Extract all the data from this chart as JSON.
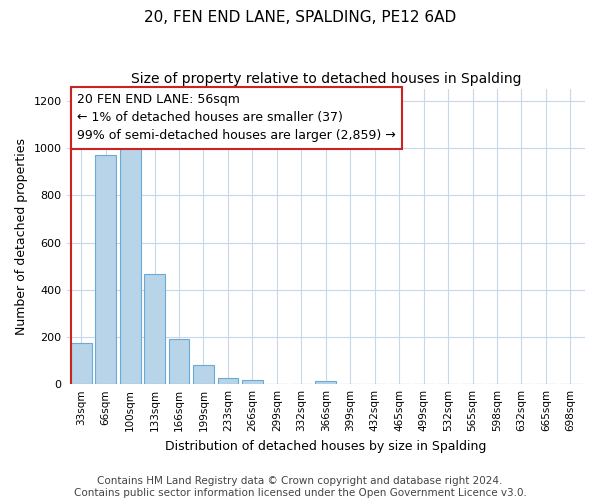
{
  "title": "20, FEN END LANE, SPALDING, PE12 6AD",
  "subtitle": "Size of property relative to detached houses in Spalding",
  "xlabel": "Distribution of detached houses by size in Spalding",
  "ylabel": "Number of detached properties",
  "bar_labels": [
    "33sqm",
    "66sqm",
    "100sqm",
    "133sqm",
    "166sqm",
    "199sqm",
    "233sqm",
    "266sqm",
    "299sqm",
    "332sqm",
    "366sqm",
    "399sqm",
    "432sqm",
    "465sqm",
    "499sqm",
    "532sqm",
    "565sqm",
    "598sqm",
    "632sqm",
    "665sqm",
    "698sqm"
  ],
  "bar_values": [
    175,
    970,
    1000,
    465,
    190,
    80,
    25,
    18,
    0,
    0,
    12,
    0,
    0,
    0,
    0,
    0,
    0,
    0,
    0,
    0,
    0
  ],
  "bar_color": "#b8d4e8",
  "bar_edge_color": "#6aaad4",
  "highlight_color": "#cc2222",
  "annotation_line1": "20 FEN END LANE: 56sqm",
  "annotation_line2": "← 1% of detached houses are smaller (37)",
  "annotation_line3": "99% of semi-detached houses are larger (2,859) →",
  "ylim": [
    0,
    1250
  ],
  "yticks": [
    0,
    200,
    400,
    600,
    800,
    1000,
    1200
  ],
  "footer_line1": "Contains HM Land Registry data © Crown copyright and database right 2024.",
  "footer_line2": "Contains public sector information licensed under the Open Government Licence v3.0.",
  "title_fontsize": 11,
  "subtitle_fontsize": 10,
  "xlabel_fontsize": 9,
  "ylabel_fontsize": 9,
  "annotation_fontsize": 9,
  "footer_fontsize": 7.5,
  "background_color": "#ffffff",
  "grid_color": "#c8d8e8"
}
